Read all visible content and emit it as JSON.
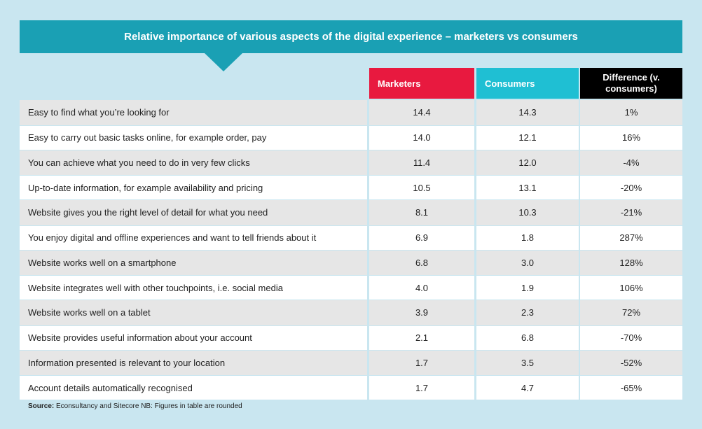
{
  "title": "Relative importance of various aspects of the digital experience – marketers vs consumers",
  "colors": {
    "banner": "#1aa0b4",
    "marketers": "#e8193f",
    "consumers": "#1fbfd3",
    "difference": "#000000",
    "background": "#c9e6f0"
  },
  "chart_data": {
    "type": "table",
    "columns": [
      "",
      "Marketers",
      "Consumers",
      "Difference (v. consumers)"
    ],
    "rows": [
      [
        "Easy to find what you’re looking for",
        "14.4",
        "14.3",
        "1%"
      ],
      [
        "Easy to carry out basic tasks online, for example order, pay",
        "14.0",
        "12.1",
        "16%"
      ],
      [
        "You can achieve what you need to do in very few clicks",
        "11.4",
        "12.0",
        "-4%"
      ],
      [
        "Up-to-date information, for example availability and pricing",
        "10.5",
        "13.1",
        "-20%"
      ],
      [
        "Website gives you the right level of detail for what you need",
        "8.1",
        "10.3",
        "-21%"
      ],
      [
        "You enjoy digital and offline experiences and want to tell friends about it",
        "6.9",
        "1.8",
        "287%"
      ],
      [
        "Website works well on a smartphone",
        "6.8",
        "3.0",
        "128%"
      ],
      [
        "Website integrates well with other touchpoints, i.e. social media",
        "4.0",
        "1.9",
        "106%"
      ],
      [
        "Website works well on a tablet",
        "3.9",
        "2.3",
        "72%"
      ],
      [
        "Website provides useful information about your account",
        "2.1",
        "6.8",
        "-70%"
      ],
      [
        "Information presented is relevant to your location",
        "1.7",
        "3.5",
        "-52%"
      ],
      [
        "Account details automatically recognised",
        "1.7",
        "4.7",
        "-65%"
      ]
    ]
  },
  "source_label": "Source:",
  "source_text": " Econsultancy and Sitecore  NB: Figures in table are rounded"
}
